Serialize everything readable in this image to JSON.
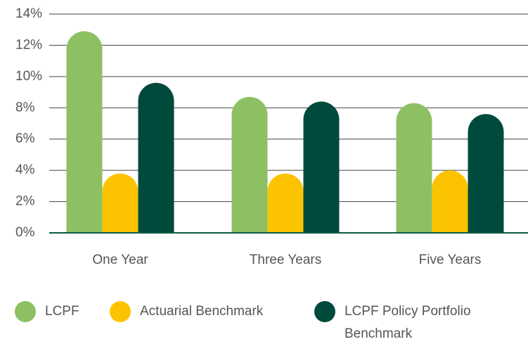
{
  "chart_data": {
    "type": "bar",
    "categories": [
      "One Year",
      "Three Years",
      "Five Years"
    ],
    "series": [
      {
        "name": "LCPF",
        "color": "#8dc063",
        "values": [
          12.9,
          8.7,
          8.3
        ]
      },
      {
        "name": "Actuarial Benchmark",
        "color": "#fcc400",
        "values": [
          3.8,
          3.8,
          4.0
        ]
      },
      {
        "name": "LCPF Policy Portfolio Benchmark",
        "color": "#004a3d",
        "values": [
          9.6,
          8.4,
          7.6
        ]
      }
    ],
    "ylim": [
      0,
      14
    ],
    "yticks": [
      {
        "value": 0,
        "label": "0%"
      },
      {
        "value": 2,
        "label": "2%"
      },
      {
        "value": 4,
        "label": "4%"
      },
      {
        "value": 6,
        "label": "6%"
      },
      {
        "value": 8,
        "label": "8%"
      },
      {
        "value": 10,
        "label": "10%"
      },
      {
        "value": 12,
        "label": "12%"
      },
      {
        "value": 14,
        "label": "14%"
      }
    ],
    "grid": true
  }
}
